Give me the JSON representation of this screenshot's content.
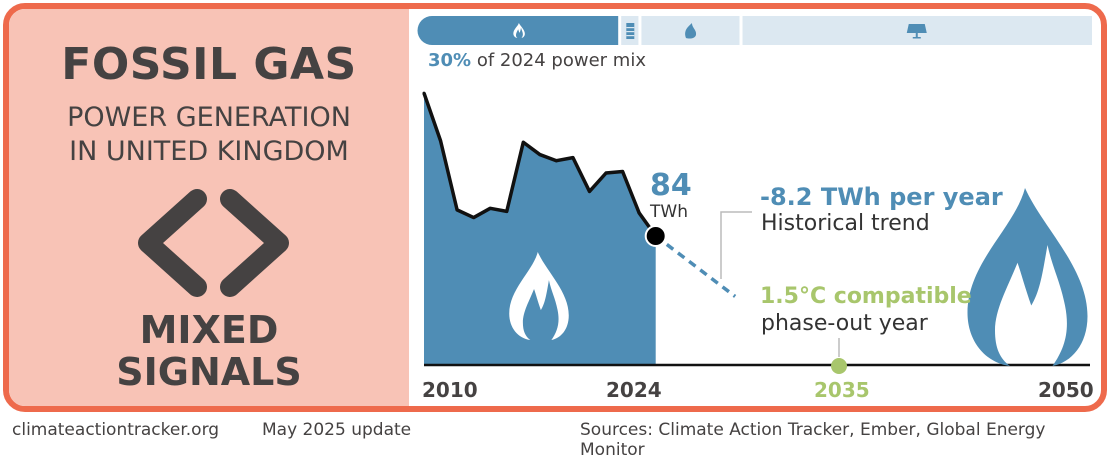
{
  "left_panel": {
    "title": "FOSSIL GAS",
    "subtitle_line1": "POWER GENERATION",
    "subtitle_line2": "IN UNITED KINGDOM",
    "rating_icon": "mixed-signals-chevrons-icon",
    "rating_line1": "MIXED",
    "rating_line2": "SIGNALS"
  },
  "mix_bar": {
    "segments": [
      {
        "name": "gas",
        "icon": "flame-icon",
        "share": 0.3,
        "color": "#4F8DB5"
      },
      {
        "name": "oil",
        "icon": "barrel-icon",
        "share": 0.03,
        "color": "#DCE8F1"
      },
      {
        "name": "biomass",
        "icon": "leaf-icon",
        "share": 0.15,
        "color": "#DCE8F1"
      },
      {
        "name": "solar",
        "icon": "solar-panel-icon",
        "share": 0.52,
        "color": "#DCE8F1"
      }
    ],
    "share_value": "30%",
    "share_text": "of 2024 power mix"
  },
  "annotations": {
    "current_value": "84",
    "current_unit": "TWh",
    "trend_value": "-8.2 TWh per year",
    "trend_label": "Historical trend",
    "phaseout_value": "1.5°C compatible",
    "phaseout_label": "phase-out year"
  },
  "footer": {
    "site": "climateactiontracker.org",
    "update": "May 2025 update",
    "sources": "Sources: Climate Action Tracker, Ember, Global Energy Monitor"
  },
  "colors": {
    "frame": "#EE6A4C",
    "panel": "#F8C3B6",
    "gas_blue": "#4F8DB5",
    "light_blue": "#DCE8F1",
    "green": "#A8C66C",
    "text_dark": "#454242"
  },
  "chart_data": {
    "type": "area",
    "title": "Fossil gas power generation in United Kingdom",
    "ylabel": "TWh",
    "x": [
      2010,
      2011,
      2012,
      2013,
      2014,
      2015,
      2016,
      2017,
      2018,
      2019,
      2020,
      2021,
      2022,
      2023,
      2024
    ],
    "series": [
      {
        "name": "Fossil gas generation (TWh)",
        "values": [
          177,
          146,
          101,
          96,
          102,
          100,
          145,
          137,
          133,
          135,
          113,
          125,
          126,
          99,
          84
        ]
      }
    ],
    "trend": {
      "label": "Historical trend",
      "slope_twh_per_year": -8.2,
      "from_year": 2024,
      "to_year": 2028.8
    },
    "phaseout_year": 2035,
    "x_tick_labels": [
      "2010",
      "2024",
      "2035",
      "2050"
    ],
    "xlim": [
      2010,
      2050
    ],
    "grid": false
  }
}
